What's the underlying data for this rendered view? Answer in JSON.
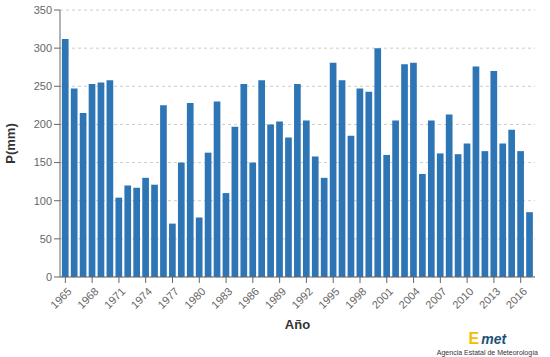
{
  "chart_data": {
    "type": "bar",
    "x": [
      1965,
      1966,
      1967,
      1968,
      1969,
      1970,
      1971,
      1972,
      1973,
      1974,
      1975,
      1976,
      1977,
      1978,
      1979,
      1980,
      1981,
      1982,
      1983,
      1984,
      1985,
      1986,
      1987,
      1988,
      1989,
      1990,
      1991,
      1992,
      1993,
      1994,
      1995,
      1996,
      1997,
      1998,
      1999,
      2000,
      2001,
      2002,
      2003,
      2004,
      2005,
      2006,
      2007,
      2008,
      2009,
      2010,
      2011,
      2012,
      2013,
      2014,
      2015,
      2016,
      2017
    ],
    "values": [
      312,
      247,
      215,
      253,
      255,
      258,
      104,
      120,
      117,
      130,
      121,
      225,
      70,
      150,
      228,
      78,
      163,
      230,
      110,
      197,
      253,
      150,
      258,
      200,
      204,
      183,
      253,
      205,
      158,
      130,
      281,
      258,
      185,
      247,
      243,
      300,
      160,
      205,
      279,
      281,
      135,
      205,
      162,
      213,
      161,
      175,
      276,
      165,
      270,
      175,
      193,
      165,
      85
    ],
    "color": "#2e75b6",
    "x_label": "Año",
    "y_label": "P(mm)",
    "xlim": [
      1964.4,
      2017.6
    ],
    "xticks": [
      1965,
      1968,
      1971,
      1974,
      1977,
      1980,
      1983,
      1986,
      1989,
      1992,
      1995,
      1998,
      2001,
      2004,
      2007,
      2010,
      2013,
      2016
    ],
    "ylim": [
      0,
      350
    ],
    "yticks": [
      0,
      50,
      100,
      150,
      200,
      250,
      300,
      350
    ],
    "grid": "y",
    "annotations": [
      "E",
      "met",
      "Agencia Estatal de Meteorología"
    ]
  }
}
